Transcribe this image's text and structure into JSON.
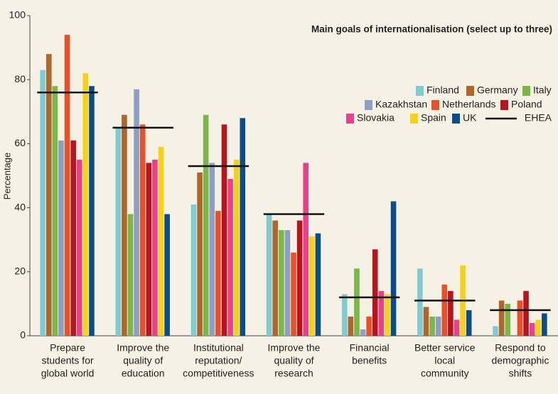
{
  "chart_data": {
    "type": "bar",
    "title": "Main goals of internationalisation (select up to three)",
    "y_label": "Percentage",
    "categories": [
      [
        "Prepare",
        "students for",
        "global world"
      ],
      [
        "Improve the",
        "quality of",
        "education"
      ],
      [
        "Institutional",
        "reputation/",
        "competitiveness"
      ],
      [
        "Improve the",
        "quality of",
        "research"
      ],
      [
        "Financial",
        "benefits"
      ],
      [
        "Better service",
        "local",
        "community"
      ],
      [
        "Respond to",
        "demographic",
        "shifts"
      ]
    ],
    "series": [
      {
        "name": "Finland",
        "color": "#7ecbd3",
        "values": [
          83,
          65,
          41,
          38,
          13,
          21,
          3
        ]
      },
      {
        "name": "Germany",
        "color": "#b0652a",
        "values": [
          88,
          69,
          51,
          36,
          6,
          9,
          11
        ]
      },
      {
        "name": "Italy",
        "color": "#7ab648",
        "values": [
          78,
          38,
          69,
          33,
          21,
          6,
          10
        ]
      },
      {
        "name": "Kazakhstan",
        "color": "#8e9fc4",
        "values": [
          61,
          77,
          54,
          33,
          2,
          6,
          0
        ]
      },
      {
        "name": "Netherlands",
        "color": "#e8502a",
        "values": [
          94,
          66,
          39,
          26,
          6,
          16,
          11
        ]
      },
      {
        "name": "Poland",
        "color": "#b5151f",
        "values": [
          61,
          54,
          66,
          36,
          27,
          14,
          14
        ]
      },
      {
        "name": "Slovakia",
        "color": "#e6418b",
        "values": [
          55,
          55,
          49,
          54,
          14,
          5,
          4
        ]
      },
      {
        "name": "Spain",
        "color": "#f7d117",
        "values": [
          82,
          59,
          55,
          31,
          13,
          22,
          5
        ]
      },
      {
        "name": "UK",
        "color": "#0b4d8a",
        "values": [
          78,
          38,
          68,
          32,
          42,
          8,
          7
        ]
      }
    ],
    "reference": {
      "name": "EHEA",
      "color": "#111111",
      "values": [
        76,
        65,
        53,
        38,
        12,
        11,
        8
      ]
    },
    "ylim": [
      0,
      100
    ],
    "yticks": [
      0,
      20,
      40,
      60,
      80,
      100
    ]
  }
}
